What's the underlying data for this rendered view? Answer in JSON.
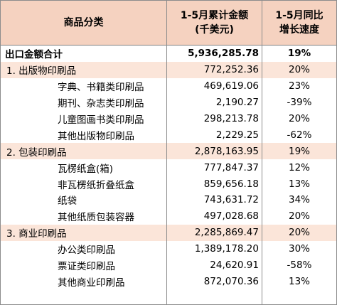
{
  "header": {
    "col1": "商品分类",
    "col2_line1": "1-5月累计金额",
    "col2_line2": "(千美元)",
    "col3_line1": "1-5月同比",
    "col3_line2": "增长速度"
  },
  "rows": [
    {
      "label": "出口金额合计",
      "amount": "5,936,285.78",
      "growth": "19%",
      "kind": "total"
    },
    {
      "label": "1. 出版物印刷品",
      "amount": "772,252.36",
      "growth": "20%",
      "kind": "sec"
    },
    {
      "label": "字典、书籍类印刷品",
      "amount": "469,619.06",
      "growth": "23%",
      "kind": "sub"
    },
    {
      "label": "期刊、杂志类印刷品",
      "amount": "2,190.27",
      "growth": "-39%",
      "kind": "sub"
    },
    {
      "label": "儿童图画书类印刷品",
      "amount": "298,213.78",
      "growth": "20%",
      "kind": "sub"
    },
    {
      "label": "其他出版物印刷品",
      "amount": "2,229.25",
      "growth": "-62%",
      "kind": "sub"
    },
    {
      "label": "2. 包装印刷品",
      "amount": "2,878,163.95",
      "growth": "19%",
      "kind": "sec"
    },
    {
      "label": "瓦楞纸盒(箱)",
      "amount": "777,847.37",
      "growth": "12%",
      "kind": "sub"
    },
    {
      "label": "非瓦楞纸折叠纸盒",
      "amount": "859,656.18",
      "growth": "13%",
      "kind": "sub"
    },
    {
      "label": "纸袋",
      "amount": "743,631.72",
      "growth": "34%",
      "kind": "sub"
    },
    {
      "label": "其他纸质包装容器",
      "amount": "497,028.68",
      "growth": "20%",
      "kind": "sub"
    },
    {
      "label": "3. 商业印刷品",
      "amount": "2,285,869.47",
      "growth": "20%",
      "kind": "sec"
    },
    {
      "label": "办公类印刷品",
      "amount": "1,389,178.20",
      "growth": "30%",
      "kind": "sub"
    },
    {
      "label": "票证类印刷品",
      "amount": "24,620.91",
      "growth": "-58%",
      "kind": "sub"
    },
    {
      "label": "其他商业印刷品",
      "amount": "872,070.36",
      "growth": "13%",
      "kind": "sub"
    }
  ],
  "colors": {
    "header_bg": "#f5d2c0",
    "section_bg": "#fbe5d9",
    "border": "#8c8c8c"
  }
}
